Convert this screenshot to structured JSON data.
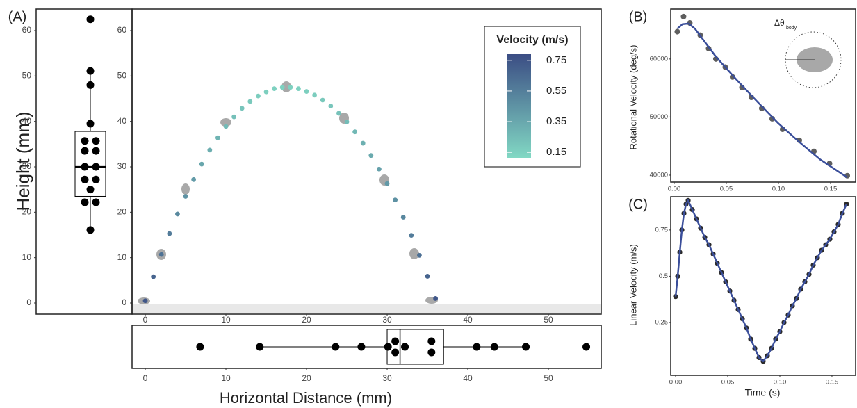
{
  "chart_data": [
    {
      "type": "scatter",
      "panel_label": "(A)",
      "x_label": "Horizontal Distance (mm)",
      "y_label": "Height (mm)",
      "x": [
        0,
        1,
        2,
        3,
        4,
        5,
        6,
        7,
        8,
        9,
        10,
        11,
        12,
        13,
        14,
        15,
        16,
        17,
        18,
        19,
        20,
        21,
        22,
        23,
        24,
        25,
        26,
        27,
        28,
        29,
        30,
        31,
        32,
        33,
        34,
        35,
        36
      ],
      "values": [
        0.5,
        5.8,
        10.7,
        15.3,
        19.6,
        23.5,
        27.2,
        30.6,
        33.7,
        36.4,
        38.9,
        41.0,
        42.9,
        44.4,
        45.6,
        46.5,
        47.2,
        47.5,
        47.5,
        47.2,
        46.6,
        45.8,
        44.7,
        43.4,
        41.8,
        39.9,
        37.7,
        35.2,
        32.5,
        29.5,
        26.3,
        22.7,
        18.9,
        14.9,
        10.5,
        5.9,
        1.0
      ],
      "color_values": [
        0.74,
        0.68,
        0.61,
        0.56,
        0.5,
        0.45,
        0.41,
        0.36,
        0.32,
        0.29,
        0.26,
        0.23,
        0.21,
        0.19,
        0.17,
        0.16,
        0.15,
        0.15,
        0.15,
        0.15,
        0.16,
        0.17,
        0.19,
        0.2,
        0.22,
        0.25,
        0.27,
        0.31,
        0.34,
        0.38,
        0.42,
        0.46,
        0.51,
        0.56,
        0.62,
        0.68,
        0.74
      ],
      "colorbar_title": "Velocity (m/s)",
      "colorbar_lim": [
        0.11,
        0.79
      ],
      "colorbar_ticks": [
        0.75,
        0.55,
        0.35,
        0.15
      ],
      "colormap": [
        "#82d9c4",
        "#3b4d84"
      ],
      "xlim": [
        -1.64,
        56.55
      ],
      "ylim": [
        -2.45,
        64.75
      ],
      "xticks": [
        0,
        10,
        20,
        30,
        40,
        50
      ],
      "yticks": [
        0,
        10,
        20,
        30,
        40,
        50,
        60
      ]
    },
    {
      "type": "box",
      "orientation": "vertical",
      "values": [
        62.5,
        51.1,
        48.0,
        39.5,
        35.7,
        35.7,
        33.5,
        33.5,
        30.0,
        30.0,
        27.2,
        27.2,
        25.0,
        22.2,
        22.2,
        16.1
      ],
      "box": {
        "whisker_low": 16.1,
        "q1": 23.5,
        "median": 30.0,
        "q3": 37.8,
        "whisker_high": 51.1
      },
      "color": "#000000",
      "ylim": [
        -2.45,
        64.75
      ],
      "yticks": [
        0,
        10,
        20,
        30,
        40,
        50,
        60
      ]
    },
    {
      "type": "box",
      "orientation": "horizontal",
      "values": [
        6.8,
        14.2,
        23.6,
        26.8,
        30.1,
        31.0,
        31.0,
        32.2,
        35.5,
        35.5,
        41.1,
        43.3,
        47.2,
        54.7
      ],
      "box": {
        "whisker_low": 14.2,
        "q1": 30.0,
        "median": 31.6,
        "q3": 37.0,
        "whisker_high": 47.2
      },
      "color": "#000000",
      "xlim": [
        -1.64,
        56.55
      ],
      "xticks": [
        0,
        10,
        20,
        30,
        40,
        50
      ]
    },
    {
      "type": "scatter",
      "panel_label": "(B)",
      "y_label": "Rotational Velocity (deg/s)",
      "x": [
        0.003,
        0.009,
        0.015,
        0.025,
        0.033,
        0.04,
        0.049,
        0.056,
        0.065,
        0.074,
        0.084,
        0.094,
        0.104,
        0.12,
        0.134,
        0.149,
        0.166
      ],
      "values": [
        64700,
        67300,
        66200,
        64100,
        61800,
        60000,
        58600,
        56900,
        55100,
        53400,
        51500,
        49700,
        47900,
        46000,
        44100,
        42000,
        39900
      ],
      "point_color": "#5e5e5e",
      "fit": {
        "x": [
          0.003,
          0.008,
          0.014,
          0.02,
          0.03,
          0.04,
          0.06,
          0.08,
          0.1,
          0.12,
          0.14,
          0.166
        ],
        "values": [
          65200,
          66000,
          66100,
          65200,
          62800,
          60400,
          56400,
          52600,
          48900,
          45700,
          42700,
          39600
        ],
        "color": "#3a4e9a"
      },
      "inset_label": "Δθ",
      "inset_subscript": "body",
      "xlim": [
        -0.0033,
        0.174
      ],
      "ylim": [
        38800,
        68600
      ],
      "xticks": [
        {
          "value": 0,
          "label": "0.00"
        },
        {
          "value": 0.05,
          "label": "0.05"
        },
        {
          "value": 0.1,
          "label": "0.10"
        },
        {
          "value": 0.15,
          "label": "0.15"
        }
      ],
      "yticks": [
        40000,
        50000,
        60000
      ]
    },
    {
      "type": "line",
      "panel_label": "(C)",
      "x_label": "Time (s)",
      "y_label": "Linear Velocity (m/s)",
      "x": [
        0,
        0.002,
        0.004,
        0.006,
        0.008,
        0.01,
        0.012,
        0.016,
        0.02,
        0.024,
        0.028,
        0.032,
        0.036,
        0.04,
        0.044,
        0.048,
        0.052,
        0.056,
        0.06,
        0.064,
        0.068,
        0.072,
        0.076,
        0.08,
        0.084,
        0.088,
        0.092,
        0.096,
        0.1,
        0.104,
        0.108,
        0.112,
        0.116,
        0.12,
        0.124,
        0.128,
        0.132,
        0.136,
        0.14,
        0.144,
        0.148,
        0.152,
        0.156,
        0.16,
        0.164
      ],
      "values": [
        0.39,
        0.5,
        0.63,
        0.75,
        0.84,
        0.89,
        0.91,
        0.86,
        0.81,
        0.76,
        0.71,
        0.67,
        0.62,
        0.57,
        0.52,
        0.47,
        0.42,
        0.37,
        0.32,
        0.27,
        0.22,
        0.16,
        0.11,
        0.06,
        0.04,
        0.07,
        0.11,
        0.16,
        0.2,
        0.25,
        0.29,
        0.34,
        0.38,
        0.43,
        0.47,
        0.51,
        0.56,
        0.6,
        0.64,
        0.67,
        0.7,
        0.74,
        0.78,
        0.84,
        0.89
      ],
      "point_color": "#2b2b2b",
      "line_color": "#3a4e9a",
      "xlim": [
        -0.0047,
        0.1727
      ],
      "ylim": [
        -0.036,
        0.93
      ],
      "xticks": [
        {
          "value": 0,
          "label": "0.00"
        },
        {
          "value": 0.05,
          "label": "0.05"
        },
        {
          "value": 0.1,
          "label": "0.10"
        },
        {
          "value": 0.15,
          "label": "0.15"
        }
      ],
      "yticks": [
        0.25,
        0.5,
        0.75
      ]
    }
  ]
}
